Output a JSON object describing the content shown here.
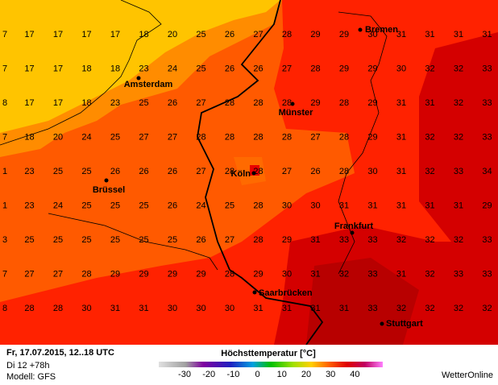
{
  "grid": {
    "rows": [
      [
        "7",
        "17",
        "17",
        "17",
        "17",
        "18",
        "20",
        "25",
        "26",
        "27",
        "28",
        "29",
        "29",
        "30",
        "31",
        "31",
        "31",
        "31"
      ],
      [
        "7",
        "17",
        "17",
        "18",
        "18",
        "23",
        "24",
        "25",
        "26",
        "26",
        "27",
        "28",
        "29",
        "29",
        "30",
        "32",
        "32",
        "33"
      ],
      [
        "8",
        "17",
        "17",
        "18",
        "23",
        "25",
        "26",
        "27",
        "28",
        "28",
        "28",
        "29",
        "28",
        "29",
        "31",
        "31",
        "32",
        "33"
      ],
      [
        "7",
        "18",
        "20",
        "24",
        "25",
        "27",
        "27",
        "28",
        "28",
        "28",
        "28",
        "27",
        "28",
        "29",
        "31",
        "32",
        "32",
        "33"
      ],
      [
        "1",
        "23",
        "25",
        "25",
        "26",
        "26",
        "26",
        "27",
        "28",
        "28",
        "27",
        "26",
        "28",
        "30",
        "31",
        "32",
        "33",
        "34"
      ],
      [
        "1",
        "23",
        "24",
        "25",
        "25",
        "25",
        "26",
        "24",
        "25",
        "28",
        "30",
        "30",
        "31",
        "31",
        "31",
        "31",
        "31",
        "29"
      ],
      [
        "3",
        "25",
        "25",
        "25",
        "25",
        "25",
        "25",
        "26",
        "27",
        "28",
        "29",
        "31",
        "33",
        "33",
        "32",
        "32",
        "32",
        "33"
      ],
      [
        "7",
        "27",
        "27",
        "28",
        "29",
        "29",
        "29",
        "29",
        "28",
        "29",
        "30",
        "31",
        "32",
        "33",
        "31",
        "32",
        "33",
        "33"
      ],
      [
        "8",
        "28",
        "28",
        "30",
        "31",
        "31",
        "30",
        "30",
        "30",
        "31",
        "31",
        "31",
        "31",
        "33",
        "32",
        "32",
        "32",
        "32"
      ]
    ]
  },
  "cities": [
    "Bremen",
    "Amsterdam",
    "Münster",
    "Brüssel",
    "Köln",
    "Frankfurt",
    "Saarbrücken",
    "Stuttgart"
  ],
  "footer": {
    "date": "Fr, 17.07.2015, 12..18 UTC",
    "run": "Di 12 +78h",
    "model": "Modell: GFS",
    "title": "Höchsttemperatur [°C]",
    "scale_ticks": [
      "-30",
      "-20",
      "-10",
      "0",
      "10",
      "20",
      "30",
      "40"
    ],
    "brand": "WetterOnline"
  }
}
